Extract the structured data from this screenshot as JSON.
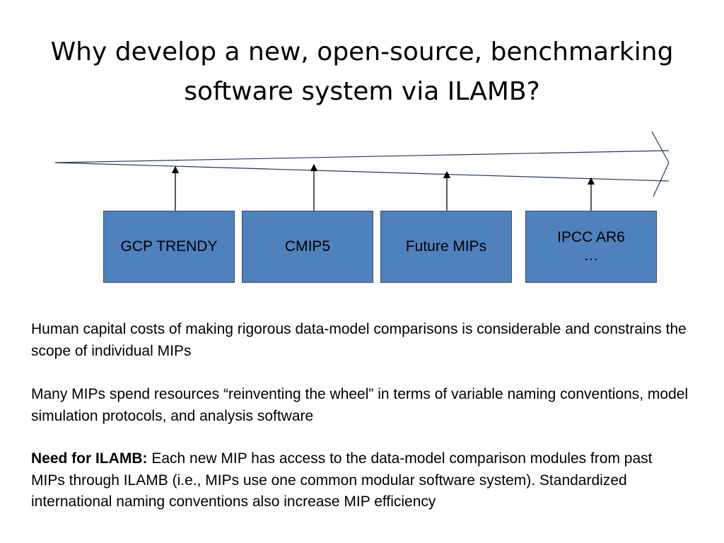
{
  "title": {
    "line1": "Why develop a new, open-source, benchmarking",
    "line2": "software system via ILAMB?"
  },
  "boxes": [
    {
      "label": "GCP TRENDY"
    },
    {
      "label": "CMIP5"
    },
    {
      "label": "Future  MIPs"
    },
    {
      "label": "IPCC AR6\n…"
    }
  ],
  "paragraphs": {
    "p1": "Human capital costs of making rigorous data-model comparisons is considerable and constrains the scope of individual MIPs",
    "p2": "Many MIPs spend resources “reinventing the wheel” in terms of variable naming conventions, model simulation protocols, and analysis software",
    "p3_bold": "Need for ILAMB:",
    "p3_rest": " Each new MIP has access to the data-model comparison modules from past MIPs through ILAMB (i.e., MIPs use one common modular software system). Standardized international naming conventions also increase MIP efficiency"
  },
  "colors": {
    "box_fill": "#4f81bd",
    "box_border": "#2c4d75",
    "line": "#1f3a5f"
  }
}
